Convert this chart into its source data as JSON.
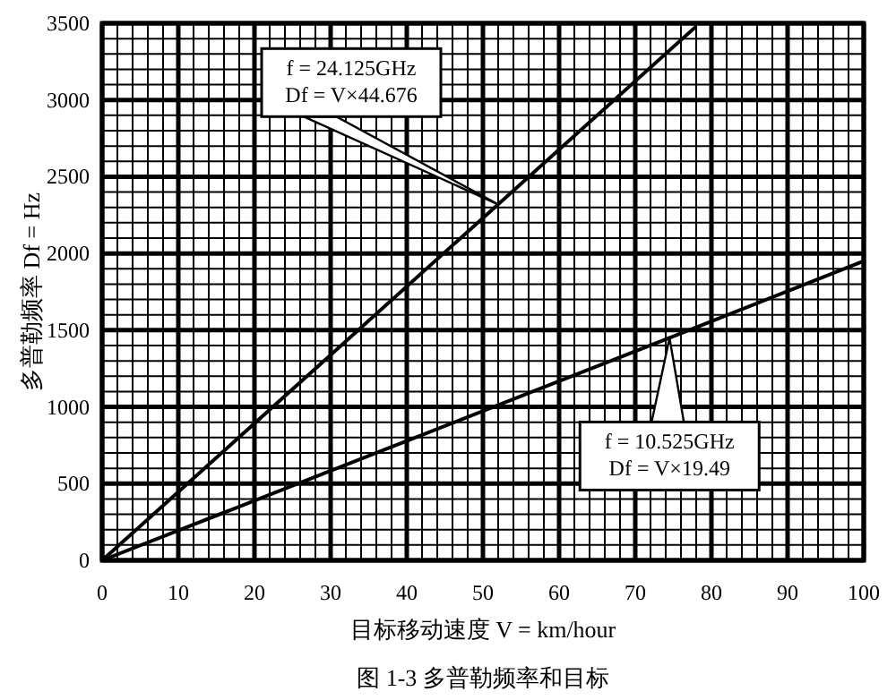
{
  "chart_data": {
    "type": "line",
    "title": "图 1-3 多普勒频率和目标",
    "xlabel": "目标移动速度 V = km/hour",
    "ylabel": "多普勒频率 Df = Hz",
    "series": [
      {
        "color": "#000000",
        "x": [
          0,
          52,
          78
        ],
        "values": [
          0,
          2320,
          3480
        ]
      },
      {
        "color": "#000000",
        "x": [
          0,
          74.5,
          100
        ],
        "values": [
          0,
          1450,
          1950
        ]
      }
    ],
    "xlim": [
      0,
      100
    ],
    "ylim": [
      0,
      3500
    ],
    "xticks": [
      0,
      10,
      20,
      30,
      40,
      50,
      60,
      70,
      80,
      90,
      100
    ],
    "yticks": [
      0,
      500,
      1000,
      1500,
      2000,
      2500,
      3000,
      3500
    ],
    "grid": true,
    "marker": "none",
    "line_style": "solid",
    "annotations": [
      {
        "text": "f = 24.125GHz\nDf = V×44.676",
        "x": 52,
        "y": 2320
      },
      {
        "text": "f = 10.525GHz\nDf = V×19.49",
        "x": 74.5,
        "y": 1450
      }
    ]
  }
}
